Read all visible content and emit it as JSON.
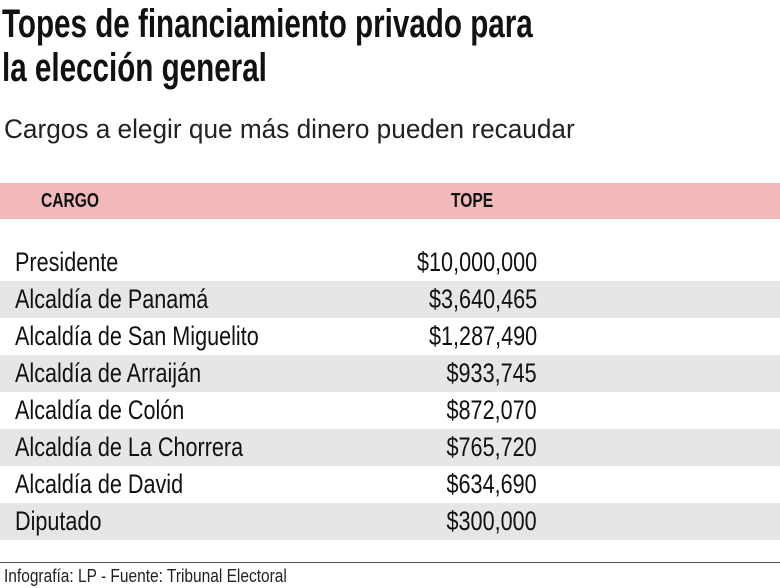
{
  "title": [
    "Topes de financiamiento privado para",
    "la elección general"
  ],
  "subtitle": "Cargos a elegir que más dinero pueden recaudar",
  "colors": {
    "header_bg": "#f1b9b9",
    "alt_row_bg": "#e6e6e8"
  },
  "chart_data": {
    "type": "table",
    "columns": [
      "CARGO",
      "TOPE"
    ],
    "rows": [
      [
        "Presidente",
        "$10,000,000"
      ],
      [
        "Alcaldía de Panamá",
        "$3,640,465"
      ],
      [
        "Alcaldía de San Miguelito",
        "$1,287,490"
      ],
      [
        "Alcaldía de Arraiján",
        "$933,745"
      ],
      [
        "Alcaldía de Colón",
        "$872,070"
      ],
      [
        "Alcaldía de La Chorrera",
        "$765,720"
      ],
      [
        "Alcaldía de David",
        "$634,690"
      ],
      [
        "Diputado",
        "$300,000"
      ]
    ]
  },
  "source": "Infografía: LP - Fuente: Tribunal Electoral"
}
